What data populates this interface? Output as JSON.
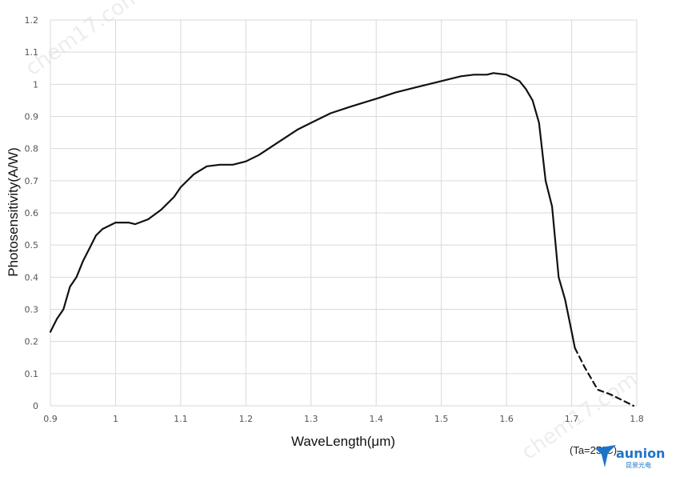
{
  "chart_data": {
    "type": "line",
    "xlabel": "WaveLength(μm)",
    "ylabel": "Photosensitivity(A/W)",
    "xlim": [
      0.9,
      1.8
    ],
    "ylim": [
      0,
      1.2
    ],
    "x_ticks": [
      "0.9",
      "1",
      "1.1",
      "1.2",
      "1.3",
      "1.4",
      "1.5",
      "1.6",
      "1.7",
      "1.8"
    ],
    "y_ticks": [
      "0",
      "0.1",
      "0.2",
      "0.3",
      "0.4",
      "0.5",
      "0.6",
      "0.7",
      "0.8",
      "0.9",
      "1",
      "1.1",
      "1.2"
    ],
    "grid": true,
    "series": [
      {
        "style": "solid",
        "color": "#111111",
        "x": [
          0.9,
          0.91,
          0.92,
          0.93,
          0.94,
          0.95,
          0.96,
          0.97,
          0.98,
          0.99,
          1.0,
          1.02,
          1.03,
          1.05,
          1.07,
          1.09,
          1.1,
          1.12,
          1.14,
          1.16,
          1.18,
          1.2,
          1.22,
          1.25,
          1.28,
          1.3,
          1.33,
          1.36,
          1.4,
          1.43,
          1.46,
          1.48,
          1.5,
          1.53,
          1.55,
          1.57,
          1.58,
          1.6,
          1.62,
          1.63,
          1.64,
          1.65,
          1.66,
          1.67,
          1.68,
          1.69,
          1.7,
          1.705
        ],
        "y": [
          0.23,
          0.27,
          0.3,
          0.37,
          0.4,
          0.45,
          0.49,
          0.53,
          0.55,
          0.56,
          0.57,
          0.57,
          0.565,
          0.58,
          0.61,
          0.65,
          0.68,
          0.72,
          0.745,
          0.75,
          0.75,
          0.76,
          0.78,
          0.82,
          0.86,
          0.88,
          0.91,
          0.93,
          0.955,
          0.975,
          0.99,
          1.0,
          1.01,
          1.025,
          1.03,
          1.03,
          1.035,
          1.03,
          1.01,
          0.985,
          0.95,
          0.88,
          0.7,
          0.62,
          0.4,
          0.33,
          0.23,
          0.18
        ]
      },
      {
        "style": "dashed",
        "color": "#111111",
        "x": [
          1.705,
          1.72,
          1.74,
          1.76,
          1.78,
          1.795
        ],
        "y": [
          0.18,
          0.12,
          0.05,
          0.035,
          0.015,
          0.0
        ]
      }
    ],
    "annotation": "(Ta=25°C)"
  },
  "watermark": "chem17.com",
  "logo": {
    "text": "aunion",
    "subtext": "昆景光电",
    "color": "#1e73c8"
  }
}
